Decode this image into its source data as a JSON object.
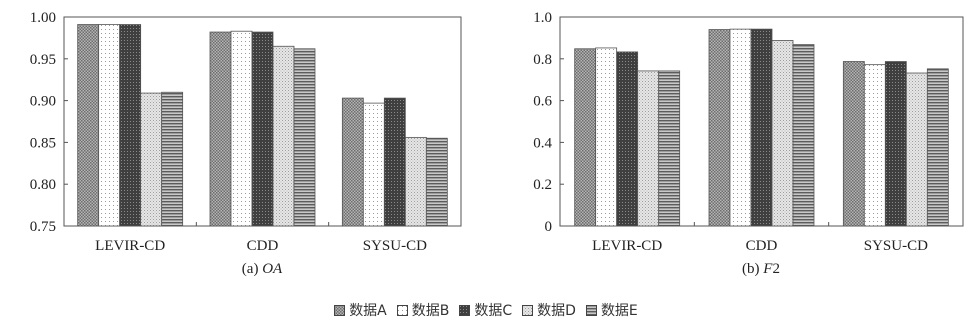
{
  "legend": [
    {
      "label": "数据A",
      "color": "#9a9a9a",
      "pattern": "dots-dense-gray"
    },
    {
      "label": "数据B",
      "color": "#ffffff",
      "pattern": "dots-sparse-white"
    },
    {
      "label": "数据C",
      "color": "#4a4a4a",
      "pattern": "dots-dark"
    },
    {
      "label": "数据D",
      "color": "#d6d6d6",
      "pattern": "dots-light-gray"
    },
    {
      "label": "数据E",
      "color": "#8f8f8f",
      "pattern": "horizontal-lines"
    }
  ],
  "chart_data": [
    {
      "type": "bar",
      "caption_prefix": "(a) ",
      "caption_italic": "OA",
      "categories": [
        "LEVIR-CD",
        "CDD",
        "SYSU-CD"
      ],
      "ylim": [
        0.75,
        1.0
      ],
      "yticks": [
        "0.75",
        "0.80",
        "0.85",
        "0.90",
        "0.95",
        "1.00"
      ],
      "ytick_values": [
        0.75,
        0.8,
        0.85,
        0.9,
        0.95,
        1.0
      ],
      "grid": false,
      "series": [
        {
          "name": "数据A",
          "values": [
            0.991,
            0.982,
            0.903
          ]
        },
        {
          "name": "数据B",
          "values": [
            0.991,
            0.983,
            0.897
          ]
        },
        {
          "name": "数据C",
          "values": [
            0.991,
            0.982,
            0.903
          ]
        },
        {
          "name": "数据D",
          "values": [
            0.909,
            0.965,
            0.856
          ]
        },
        {
          "name": "数据E",
          "values": [
            0.91,
            0.962,
            0.855
          ]
        }
      ]
    },
    {
      "type": "bar",
      "caption_prefix": "(b) ",
      "caption_italic": "F",
      "caption_suffix": "2",
      "categories": [
        "LEVIR-CD",
        "CDD",
        "SYSU-CD"
      ],
      "ylim": [
        0,
        1.0
      ],
      "yticks": [
        "0",
        "0.2",
        "0.4",
        "0.6",
        "0.8",
        "1.0"
      ],
      "ytick_values": [
        0,
        0.2,
        0.4,
        0.6,
        0.8,
        1.0
      ],
      "grid": false,
      "series": [
        {
          "name": "数据A",
          "values": [
            0.848,
            0.94,
            0.787
          ]
        },
        {
          "name": "数据B",
          "values": [
            0.852,
            0.942,
            0.772
          ]
        },
        {
          "name": "数据C",
          "values": [
            0.833,
            0.942,
            0.787
          ]
        },
        {
          "name": "数据D",
          "values": [
            0.742,
            0.888,
            0.732
          ]
        },
        {
          "name": "数据E",
          "values": [
            0.742,
            0.868,
            0.752
          ]
        }
      ]
    }
  ]
}
